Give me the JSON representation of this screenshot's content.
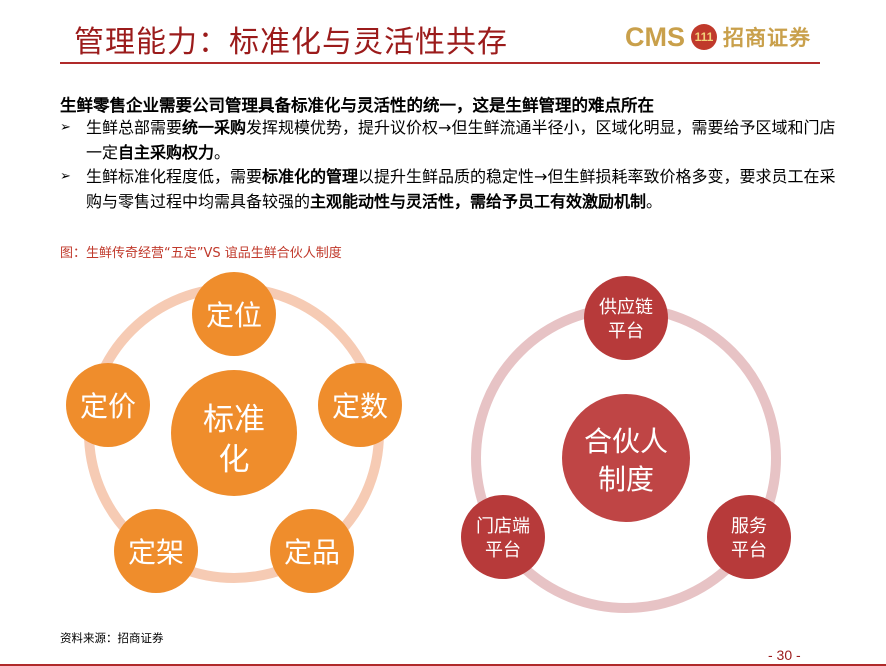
{
  "header": {
    "title": "管理能力：标准化与灵活性共存",
    "logo": {
      "cms": "CMS",
      "badge": "111",
      "name": "招商证券"
    }
  },
  "body": {
    "headline": "生鲜零售企业需要公司管理具备标准化与灵活性的统一，这是生鲜管理的难点所在",
    "bullets": [
      {
        "arrow": "➢",
        "parts": [
          {
            "text": "生鲜总部需要",
            "bold": false
          },
          {
            "text": "统一采购",
            "bold": true
          },
          {
            "text": "发挥规模优势，提升议价权→但生鲜流通半径小，区域化明显，需要给予区域和门店一定",
            "bold": false
          },
          {
            "text": "自主采购权力",
            "bold": true
          },
          {
            "text": "。",
            "bold": false
          }
        ]
      },
      {
        "arrow": "➢",
        "parts": [
          {
            "text": "生鲜标准化程度低，需要",
            "bold": false
          },
          {
            "text": "标准化的管理",
            "bold": true
          },
          {
            "text": "以提升生鲜品质的稳定性→但生鲜损耗率致价格多变，要求员工在采购与零售过程中均需具备较强的",
            "bold": false
          },
          {
            "text": "主观能动性与灵活性，需给予员工有效激励机制",
            "bold": true
          },
          {
            "text": "。",
            "bold": false
          }
        ]
      }
    ],
    "figure_caption": "图：生鲜传奇经营“五定”VS 谊品生鲜合伙人制度"
  },
  "diagram_left": {
    "center": "标准化",
    "nodes": [
      "定位",
      "定数",
      "定品",
      "定架",
      "定价"
    ],
    "colors": {
      "node": "#ef8d2c",
      "center": "#ef8d2c",
      "ring": "#f6cbb4"
    }
  },
  "diagram_right": {
    "center": "合伙人制度",
    "nodes": [
      "供应链平台",
      "服务平台",
      "门店端平台"
    ],
    "colors": {
      "node": "#b73a3a",
      "center": "#bf4545",
      "ring": "#e7c3c5"
    }
  },
  "footer": {
    "source": "资料来源：招商证券",
    "page": "- 30 -"
  }
}
